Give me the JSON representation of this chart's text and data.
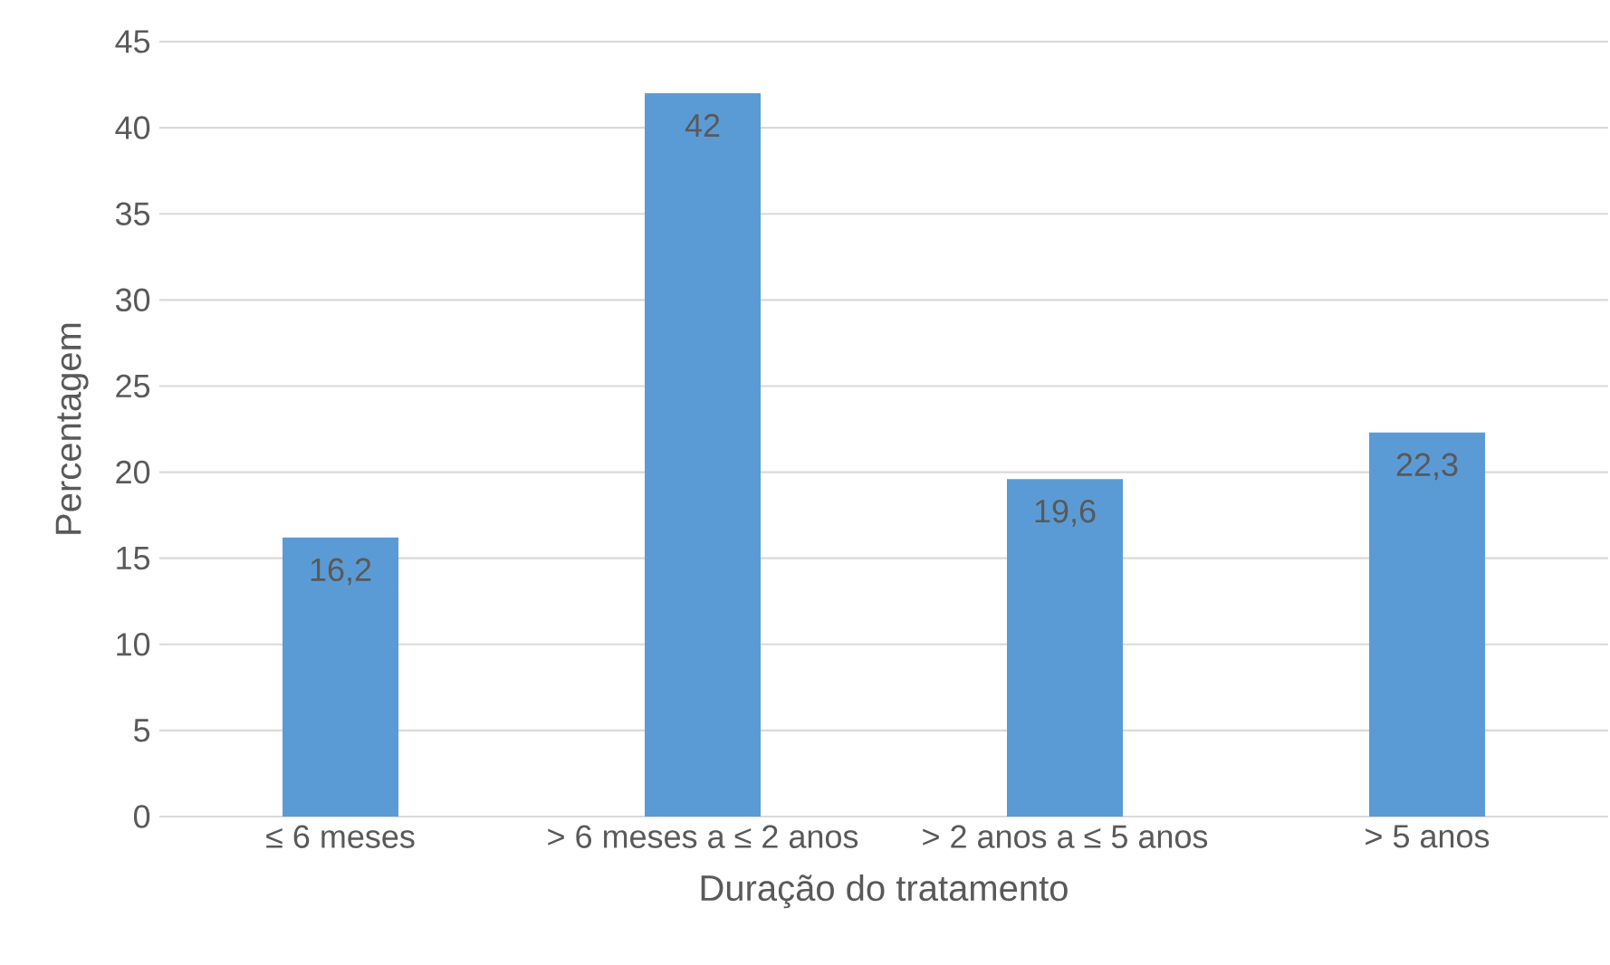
{
  "chart_data": {
    "type": "bar",
    "xlabel": "Duração do tratamento",
    "ylabel": "Percentagem",
    "categories": [
      "≤ 6 meses",
      "> 6 meses a ≤ 2 anos",
      "> 2 anos a ≤ 5 anos",
      "> 5 anos"
    ],
    "values": [
      16.2,
      42,
      19.6,
      22.3
    ],
    "value_labels": [
      "16,2",
      "42",
      "19,6",
      "22,3"
    ],
    "color": "#5b9bd5",
    "ylim": [
      0,
      45
    ],
    "yticks": [
      0,
      5,
      10,
      15,
      20,
      25,
      30,
      35,
      40,
      45
    ],
    "grid": "y"
  }
}
